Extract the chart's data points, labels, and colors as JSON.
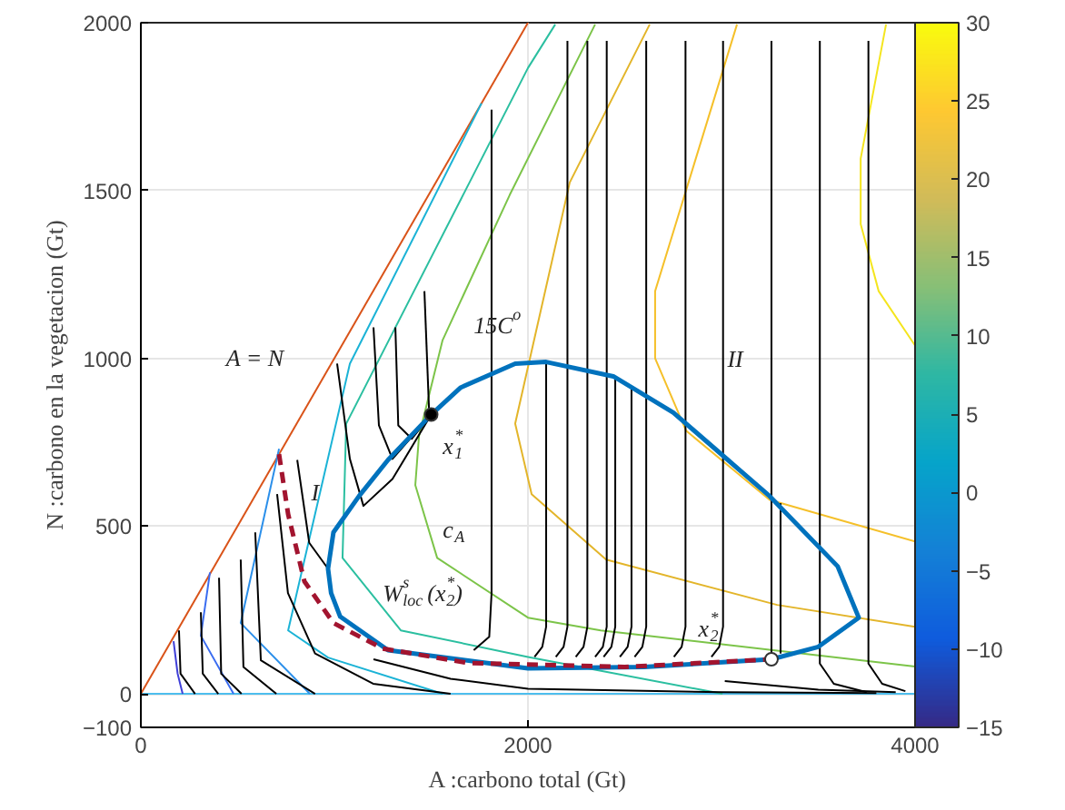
{
  "chart_data": {
    "type": "line",
    "xlabel": "A :carbono total (Gt)",
    "ylabel": "N :carbono en la vegetacion (Gt)",
    "xlim": [
      0,
      4000
    ],
    "xticks": [
      0,
      2000,
      4000
    ],
    "ylim": [
      -100,
      2000
    ],
    "yticks": [
      -100,
      0,
      500,
      1000,
      1500,
      2000
    ],
    "grid": true,
    "clim": [
      -15,
      30
    ],
    "cticks": [
      -15,
      -10,
      -5,
      0,
      5,
      10,
      15,
      20,
      25,
      30
    ],
    "series": [
      {
        "color": "#4dbeee",
        "x": [
          0,
          4000
        ],
        "values": [
          0,
          0
        ]
      },
      {
        "color": "#d95319",
        "x": [
          0,
          2000
        ],
        "values": [
          0,
          2000
        ]
      },
      {
        "color": "#3f3fd8",
        "x": [
          169,
          190,
          216
        ],
        "values": [
          157,
          60,
          0
        ]
      },
      {
        "color": "#3a6cf0",
        "x": [
          357,
          310,
          479
        ],
        "values": [
          362,
          173,
          0
        ]
      },
      {
        "color": "#2b8fea",
        "x": [
          714,
          516,
          873
        ],
        "values": [
          730,
          211,
          0
        ]
      },
      {
        "color": "#1bb3d6",
        "x": [
          1760,
          1080,
          761,
          967,
          1559
        ],
        "values": [
          1760,
          984,
          189,
          108,
          0
        ]
      },
      {
        "color": "#2bbfa0",
        "x": [
          2141,
          2000,
          1061,
          1042,
          1343,
          2000,
          3005
        ],
        "values": [
          1995,
          1865,
          805,
          405,
          189,
          110,
          0
        ]
      },
      {
        "color": "#7cc449",
        "x": [
          2347,
          1906,
          1559,
          1437,
          1418,
          1531,
          2000,
          2376,
          4000
        ],
        "values": [
          1995,
          1487,
          1054,
          768,
          622,
          405,
          227,
          189,
          81
        ]
      },
      {
        "color": "#e3b52a",
        "x": [
          2629,
          2216,
          1934,
          2019,
          2404,
          3287,
          4000
        ],
        "values": [
          1995,
          1524,
          805,
          595,
          400,
          265,
          200
        ]
      },
      {
        "color": "#f5c02a",
        "x": [
          3080,
          2657,
          2657,
          2817,
          3249,
          4000
        ],
        "values": [
          1995,
          1200,
          1000,
          784,
          578,
          454
        ]
      },
      {
        "color": "#f4e51e",
        "x": [
          3850,
          3719,
          3719,
          3812,
          4000
        ],
        "values": [
          1995,
          1595,
          1400,
          1200,
          1038
        ]
      },
      {
        "color": "#000000",
        "x": [
          197,
          205,
          280
        ],
        "values": [
          189,
          60,
          0
        ]
      },
      {
        "color": "#000000",
        "x": [
          310,
          320,
          400
        ],
        "values": [
          243,
          60,
          0
        ]
      },
      {
        "color": "#000000",
        "x": [
          404,
          415,
          520
        ],
        "values": [
          346,
          60,
          0
        ]
      },
      {
        "color": "#000000",
        "x": [
          516,
          530,
          700
        ],
        "values": [
          400,
          80,
          0
        ]
      },
      {
        "color": "#000000",
        "x": [
          591,
          620,
          900
        ],
        "values": [
          481,
          100,
          0
        ]
      },
      {
        "color": "#000000",
        "x": [
          704,
          760,
          900,
          1200,
          1600
        ],
        "values": [
          595,
          300,
          120,
          30,
          0
        ]
      },
      {
        "color": "#000000",
        "x": [
          808,
          870,
          967
        ],
        "values": [
          697,
          450,
          373
        ]
      },
      {
        "color": "#000000",
        "x": [
          1014,
          1080,
          1150,
          1300,
          1500
        ],
        "values": [
          984,
          700,
          560,
          640,
          832
        ]
      },
      {
        "color": "#000000",
        "x": [
          1202,
          1230,
          1300,
          1500
        ],
        "values": [
          1092,
          800,
          700,
          832
        ]
      },
      {
        "color": "#000000",
        "x": [
          1315,
          1330,
          1400,
          1500
        ],
        "values": [
          1092,
          800,
          760,
          832
        ]
      },
      {
        "color": "#000000",
        "x": [
          1465,
          1490
        ],
        "values": [
          1200,
          832
        ]
      },
      {
        "color": "#000000",
        "x": [
          1812,
          1812,
          1800,
          1720
        ],
        "values": [
          1741,
          300,
          170,
          130
        ]
      },
      {
        "color": "#000000",
        "x": [
          1202,
          1600,
          2000,
          3000,
          3800
        ],
        "values": [
          103,
          45,
          15,
          5,
          2
        ]
      },
      {
        "color": "#000000",
        "x": [
          2094,
          2094,
          2074,
          2034
        ],
        "values": [
          989,
          200,
          140,
          110
        ]
      },
      {
        "color": "#000000",
        "x": [
          2204,
          2204,
          2184,
          2144
        ],
        "values": [
          1946,
          200,
          140,
          110
        ]
      },
      {
        "color": "#000000",
        "x": [
          2307,
          2307,
          2287,
          2247
        ],
        "values": [
          1946,
          200,
          140,
          110
        ]
      },
      {
        "color": "#000000",
        "x": [
          2407,
          2407,
          2387,
          2347
        ],
        "values": [
          1946,
          200,
          140,
          110
        ]
      },
      {
        "color": "#000000",
        "x": [
          2451,
          2451,
          2431,
          2391
        ],
        "values": [
          940,
          200,
          140,
          110
        ]
      },
      {
        "color": "#000000",
        "x": [
          2535,
          2535,
          2515,
          2475
        ],
        "values": [
          913,
          200,
          140,
          110
        ]
      },
      {
        "color": "#000000",
        "x": [
          2611,
          2611,
          2591,
          2551
        ],
        "values": [
          1946,
          200,
          140,
          110
        ]
      },
      {
        "color": "#000000",
        "x": [
          2814,
          2814,
          2794,
          2754
        ],
        "values": [
          1946,
          200,
          140,
          110
        ]
      },
      {
        "color": "#000000",
        "x": [
          3008,
          3008,
          2988,
          2948
        ],
        "values": [
          1946,
          200,
          140,
          110
        ]
      },
      {
        "color": "#000000",
        "x": [
          3258,
          3258
        ],
        "values": [
          1946,
          103
        ]
      },
      {
        "color": "#000000",
        "x": [
          3305,
          3305
        ],
        "values": [
          568,
          120
        ]
      },
      {
        "color": "#000000",
        "x": [
          3017,
          3500,
          3900
        ],
        "values": [
          38,
          12,
          5
        ]
      },
      {
        "color": "#000000",
        "x": [
          3508,
          3508,
          3580,
          3750
        ],
        "values": [
          1946,
          90,
          30,
          5
        ]
      },
      {
        "color": "#000000",
        "x": [
          3759,
          3759,
          3830,
          3950
        ],
        "values": [
          1946,
          90,
          30,
          8
        ]
      },
      {
        "color": "#0072bd",
        "x": [
          1500,
          1277,
          1127,
          995,
          967,
          983,
          1030,
          1277,
          2000,
          2600,
          3258
        ],
        "values": [
          832,
          697,
          589,
          481,
          373,
          300,
          230,
          130,
          76,
          80,
          103
        ]
      },
      {
        "color": "#0072bd",
        "x": [
          3258,
          3500,
          3709,
          3600,
          3249,
          3033,
          2751,
          2441,
          2094,
          1934,
          1653,
          1500
        ],
        "values": [
          103,
          140,
          227,
          380,
          589,
          697,
          838,
          946,
          989,
          984,
          913,
          832
        ]
      },
      {
        "color": "#a2142f",
        "line_style": "dashed",
        "x": [
          714,
          761,
          845,
          995,
          1249,
          1690,
          2500,
          3258
        ],
        "values": [
          714,
          535,
          335,
          211,
          135,
          92,
          80,
          103
        ]
      },
      {
        "type": "scatter",
        "marker": "circle",
        "color": "#000000",
        "x": [
          1500
        ],
        "values": [
          832
        ]
      },
      {
        "type": "scatter",
        "marker": "circle",
        "color": "#ffffff",
        "x": [
          3258
        ],
        "values": [
          103
        ]
      }
    ],
    "annotations": [
      "A = N",
      "15C$^{o}$",
      "x$_{1}$$^{*}$",
      {
        "text": "I",
        "x": 880,
        "y": 600
      },
      "c$_{A}$",
      {
        "text": "W$^{s}$$_{loc}$(x$_{2}$$^{*}$)",
        "x": 1250,
        "y": 300
      },
      {
        "text": "II",
        "x": 3030,
        "y": 1000
      },
      "x$_{2}$$^{*}$"
    ]
  }
}
